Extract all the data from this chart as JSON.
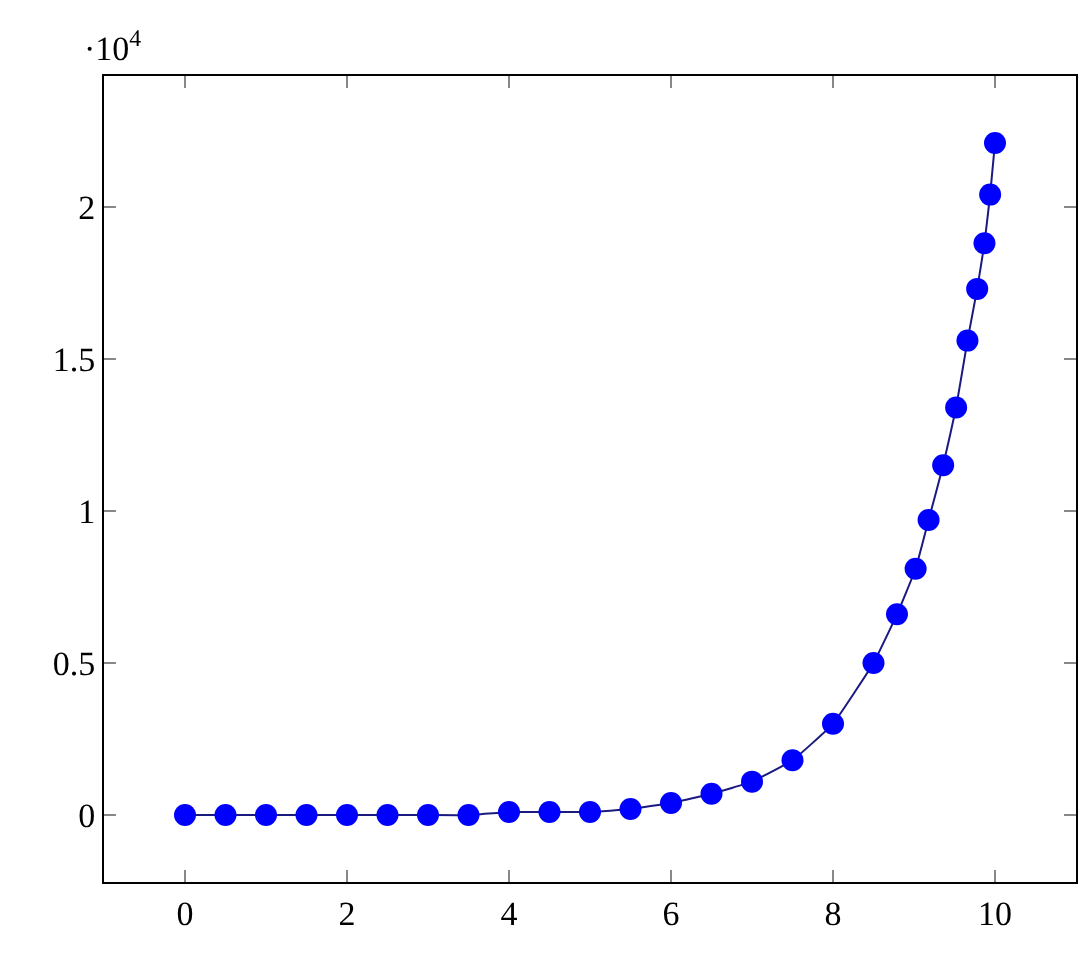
{
  "chart_data": {
    "type": "line",
    "annotations": [
      "·10$^{4}$"
    ],
    "x": [
      0,
      0.5,
      1,
      1.5,
      2,
      2.5,
      3,
      3.5,
      4,
      4.5,
      5,
      5.5,
      6,
      6.5,
      7,
      7.5,
      8,
      8.5,
      8.79,
      9.02,
      9.18,
      9.36,
      9.52,
      9.66,
      9.78,
      9.87,
      9.94,
      10
    ],
    "series": [
      {
        "color": "#0000ff",
        "values": [
          0,
          0,
          0,
          0,
          0,
          0,
          0,
          0,
          0.01,
          0.01,
          0.01,
          0.02,
          0.04,
          0.07,
          0.11,
          0.18,
          0.3,
          0.5,
          0.66,
          0.81,
          0.97,
          1.15,
          1.34,
          1.56,
          1.73,
          1.88,
          2.04,
          2.21
        ]
      }
    ],
    "xlim": [
      -1,
      11
    ],
    "ylim": [
      -0.22,
      2.43
    ],
    "xticks": [
      0,
      2,
      4,
      6,
      8,
      10
    ],
    "yticks": [
      0,
      0.5,
      1,
      1.5,
      2
    ],
    "grid": false,
    "legend": false,
    "marker": "circle",
    "line_style": "solid"
  }
}
